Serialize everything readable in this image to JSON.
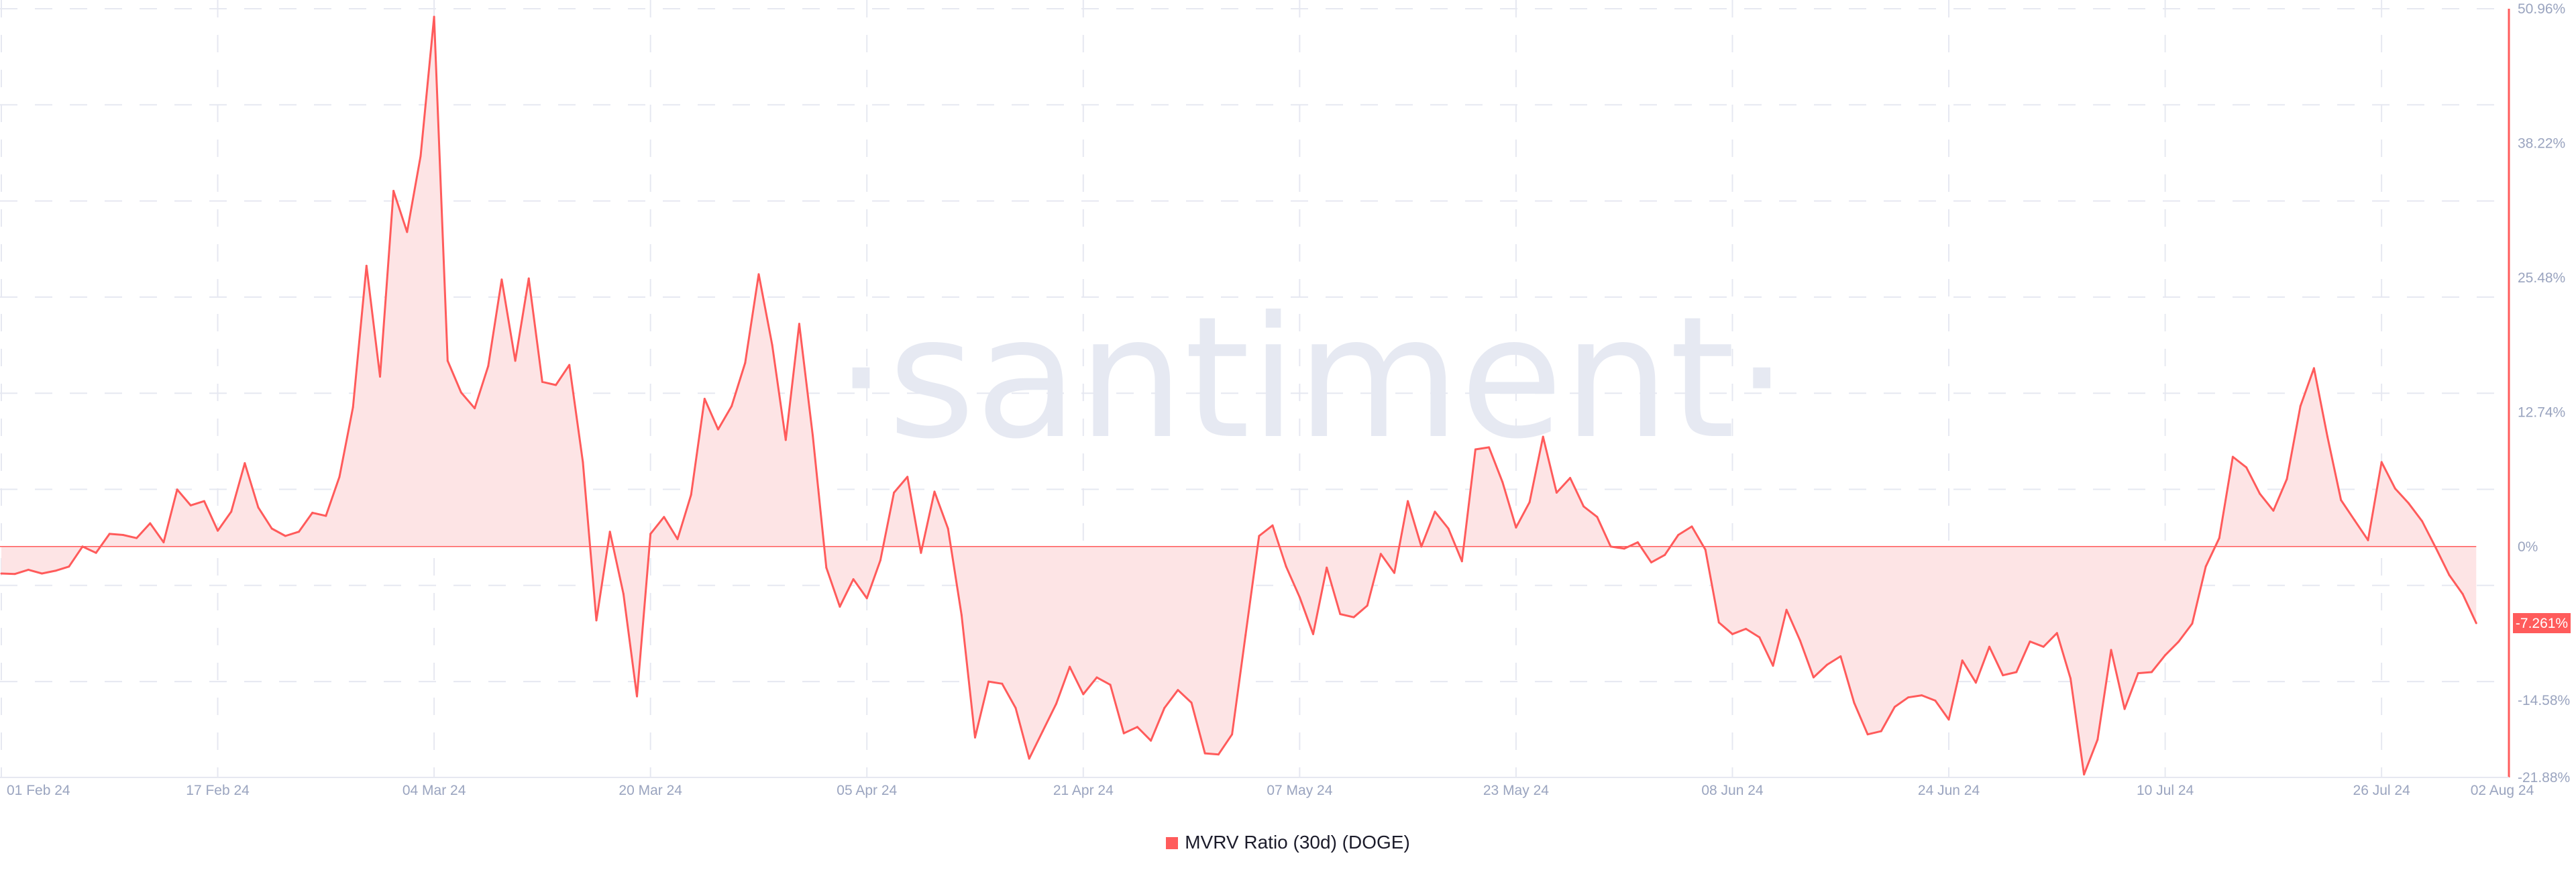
{
  "chart_data": {
    "type": "area",
    "watermark": "·santiment·",
    "series": [
      {
        "name": "MVRV Ratio (30d) (DOGE)",
        "color": "#ff5b5b",
        "fill": "#fde4e5"
      }
    ],
    "x": [
      "2024-02-01",
      "2024-02-02",
      "2024-02-03",
      "2024-02-04",
      "2024-02-05",
      "2024-02-06",
      "2024-02-07",
      "2024-02-08",
      "2024-02-09",
      "2024-02-10",
      "2024-02-11",
      "2024-02-12",
      "2024-02-13",
      "2024-02-14",
      "2024-02-15",
      "2024-02-16",
      "2024-02-17",
      "2024-02-18",
      "2024-02-19",
      "2024-02-20",
      "2024-02-21",
      "2024-02-22",
      "2024-02-23",
      "2024-02-24",
      "2024-02-25",
      "2024-02-26",
      "2024-02-27",
      "2024-02-28",
      "2024-02-29",
      "2024-03-01",
      "2024-03-02",
      "2024-03-03",
      "2024-03-04",
      "2024-03-05",
      "2024-03-06",
      "2024-03-07",
      "2024-03-08",
      "2024-03-09",
      "2024-03-10",
      "2024-03-11",
      "2024-03-12",
      "2024-03-13",
      "2024-03-14",
      "2024-03-15",
      "2024-03-16",
      "2024-03-17",
      "2024-03-18",
      "2024-03-19",
      "2024-03-20",
      "2024-03-21",
      "2024-03-22",
      "2024-03-23",
      "2024-03-24",
      "2024-03-25",
      "2024-03-26",
      "2024-03-27",
      "2024-03-28",
      "2024-03-29",
      "2024-03-30",
      "2024-03-31",
      "2024-04-01",
      "2024-04-02",
      "2024-04-03",
      "2024-04-04",
      "2024-04-05",
      "2024-04-06",
      "2024-04-07",
      "2024-04-08",
      "2024-04-09",
      "2024-04-10",
      "2024-04-11",
      "2024-04-12",
      "2024-04-13",
      "2024-04-14",
      "2024-04-15",
      "2024-04-16",
      "2024-04-17",
      "2024-04-18",
      "2024-04-19",
      "2024-04-20",
      "2024-04-21",
      "2024-04-22",
      "2024-04-23",
      "2024-04-24",
      "2024-04-25",
      "2024-04-26",
      "2024-04-27",
      "2024-04-28",
      "2024-04-29",
      "2024-04-30",
      "2024-05-01",
      "2024-05-02",
      "2024-05-03",
      "2024-05-04",
      "2024-05-05",
      "2024-05-06",
      "2024-05-07",
      "2024-05-08",
      "2024-05-09",
      "2024-05-10",
      "2024-05-11",
      "2024-05-12",
      "2024-05-13",
      "2024-05-14",
      "2024-05-15",
      "2024-05-16",
      "2024-05-17",
      "2024-05-18",
      "2024-05-19",
      "2024-05-20",
      "2024-05-21",
      "2024-05-22",
      "2024-05-23",
      "2024-05-24",
      "2024-05-25",
      "2024-05-26",
      "2024-05-27",
      "2024-05-28",
      "2024-05-29",
      "2024-05-30",
      "2024-05-31",
      "2024-06-01",
      "2024-06-02",
      "2024-06-03",
      "2024-06-04",
      "2024-06-05",
      "2024-06-06",
      "2024-06-07",
      "2024-06-08",
      "2024-06-09",
      "2024-06-10",
      "2024-06-11",
      "2024-06-12",
      "2024-06-13",
      "2024-06-14",
      "2024-06-15",
      "2024-06-16",
      "2024-06-17",
      "2024-06-18",
      "2024-06-19",
      "2024-06-20",
      "2024-06-21",
      "2024-06-22",
      "2024-06-23",
      "2024-06-24",
      "2024-06-25",
      "2024-06-26",
      "2024-06-27",
      "2024-06-28",
      "2024-06-29",
      "2024-06-30",
      "2024-07-01",
      "2024-07-02",
      "2024-07-03",
      "2024-07-04",
      "2024-07-05",
      "2024-07-06",
      "2024-07-07",
      "2024-07-08",
      "2024-07-09",
      "2024-07-10",
      "2024-07-11",
      "2024-07-12",
      "2024-07-13",
      "2024-07-14",
      "2024-07-15",
      "2024-07-16",
      "2024-07-17",
      "2024-07-18",
      "2024-07-19",
      "2024-07-20",
      "2024-07-21",
      "2024-07-22",
      "2024-07-23",
      "2024-07-24",
      "2024-07-25",
      "2024-07-26",
      "2024-07-27",
      "2024-07-28",
      "2024-07-29",
      "2024-07-30",
      "2024-07-31",
      "2024-08-01",
      "2024-08-02"
    ],
    "values": [
      -2.56,
      -2.6,
      -2.2,
      -2.56,
      -2.3,
      -1.9,
      0,
      -0.6,
      1.2,
      1.1,
      0.8,
      2.2,
      0.4,
      5.4,
      3.9,
      4.3,
      1.5,
      3.3,
      7.9,
      3.7,
      1.7,
      1.0,
      1.4,
      3.2,
      2.9,
      6.6,
      13.2,
      26.6,
      16.1,
      33.7,
      29.8,
      37.0,
      50.2,
      17.6,
      14.6,
      13.1,
      17.1,
      25.3,
      17.6,
      25.4,
      15.6,
      15.3,
      17.2,
      8.0,
      -7.0,
      1.4,
      -4.5,
      -14.2,
      1.2,
      2.8,
      0.7,
      4.9,
      14.0,
      11.1,
      13.3,
      17.4,
      25.8,
      19.1,
      10.1,
      21.1,
      10.5,
      -2.0,
      -5.7,
      -3.1,
      -4.9,
      -1.3,
      5.1,
      6.6,
      -0.6,
      5.2,
      1.7,
      -6.5,
      -18.1,
      -12.8,
      -13.0,
      -15.3,
      -20.1,
      -17.5,
      -14.9,
      -11.4,
      -14.0,
      -12.4,
      -13.1,
      -17.7,
      -17.1,
      -18.4,
      -15.3,
      -13.6,
      -14.8,
      -19.6,
      -19.7,
      -17.8,
      -8.4,
      1.0,
      2.0,
      -1.9,
      -4.8,
      -8.3,
      -2.0,
      -6.4,
      -6.7,
      -5.6,
      -0.7,
      -2.5,
      4.3,
      0,
      3.3,
      1.7,
      -1.4,
      9.2,
      9.4,
      6.1,
      1.8,
      4.2,
      10.4,
      5.1,
      6.5,
      3.8,
      2.8,
      0,
      -0.2,
      0.4,
      -1.5,
      -0.8,
      1.1,
      1.9,
      -0.3,
      -7.2,
      -8.3,
      -7.8,
      -8.6,
      -11.3,
      -6.0,
      -8.9,
      -12.4,
      -11.2,
      -10.4,
      -14.8,
      -17.8,
      -17.5,
      -15.2,
      -14.3,
      -14.1,
      -14.6,
      -16.4,
      -10.8,
      -12.9,
      -9.5,
      -12.2,
      -11.9,
      -9.0,
      -9.5,
      -8.2,
      -12.5,
      -21.6,
      -18.3,
      -9.8,
      -15.4,
      -12.0,
      -11.9,
      -10.3,
      -9.0,
      -7.3,
      -1.9,
      0.8,
      8.5,
      7.5,
      5.0,
      3.4,
      6.4,
      13.3,
      16.9,
      10.4,
      4.4,
      2.5,
      0.6,
      8.0,
      5.5,
      4.1,
      2.4,
      -0.1,
      -2.7,
      -4.5,
      -7.261
    ],
    "ylim": [
      -21.88,
      50.96
    ],
    "y_ticks": [
      {
        "value": 50.96,
        "label": "50.96%"
      },
      {
        "value": 38.22,
        "label": "38.22%"
      },
      {
        "value": 25.48,
        "label": "25.48%"
      },
      {
        "value": 12.74,
        "label": "12.74%"
      },
      {
        "value": 0,
        "label": "0%"
      },
      {
        "value": -14.58,
        "label": "-14.58%"
      },
      {
        "value": -21.88,
        "label": "-21.88%"
      }
    ],
    "x_ticks": [
      {
        "date": "2024-02-01",
        "label": "01 Feb 24"
      },
      {
        "date": "2024-02-17",
        "label": "17 Feb 24"
      },
      {
        "date": "2024-03-04",
        "label": "04 Mar 24"
      },
      {
        "date": "2024-03-20",
        "label": "20 Mar 24"
      },
      {
        "date": "2024-04-05",
        "label": "05 Apr 24"
      },
      {
        "date": "2024-04-21",
        "label": "21 Apr 24"
      },
      {
        "date": "2024-05-07",
        "label": "07 May 24"
      },
      {
        "date": "2024-05-23",
        "label": "23 May 24"
      },
      {
        "date": "2024-06-08",
        "label": "08 Jun 24"
      },
      {
        "date": "2024-06-24",
        "label": "24 Jun 24"
      },
      {
        "date": "2024-07-10",
        "label": "10 Jul 24"
      },
      {
        "date": "2024-07-26",
        "label": "26 Jul 24"
      },
      {
        "date": "2024-08-02",
        "label": "02 Aug 24"
      }
    ],
    "last_value_label": "-7.261%",
    "reference_line": 0,
    "grid": true,
    "legend": {
      "position": "bottom-center",
      "label": "MVRV Ratio (30d) (DOGE)"
    }
  }
}
